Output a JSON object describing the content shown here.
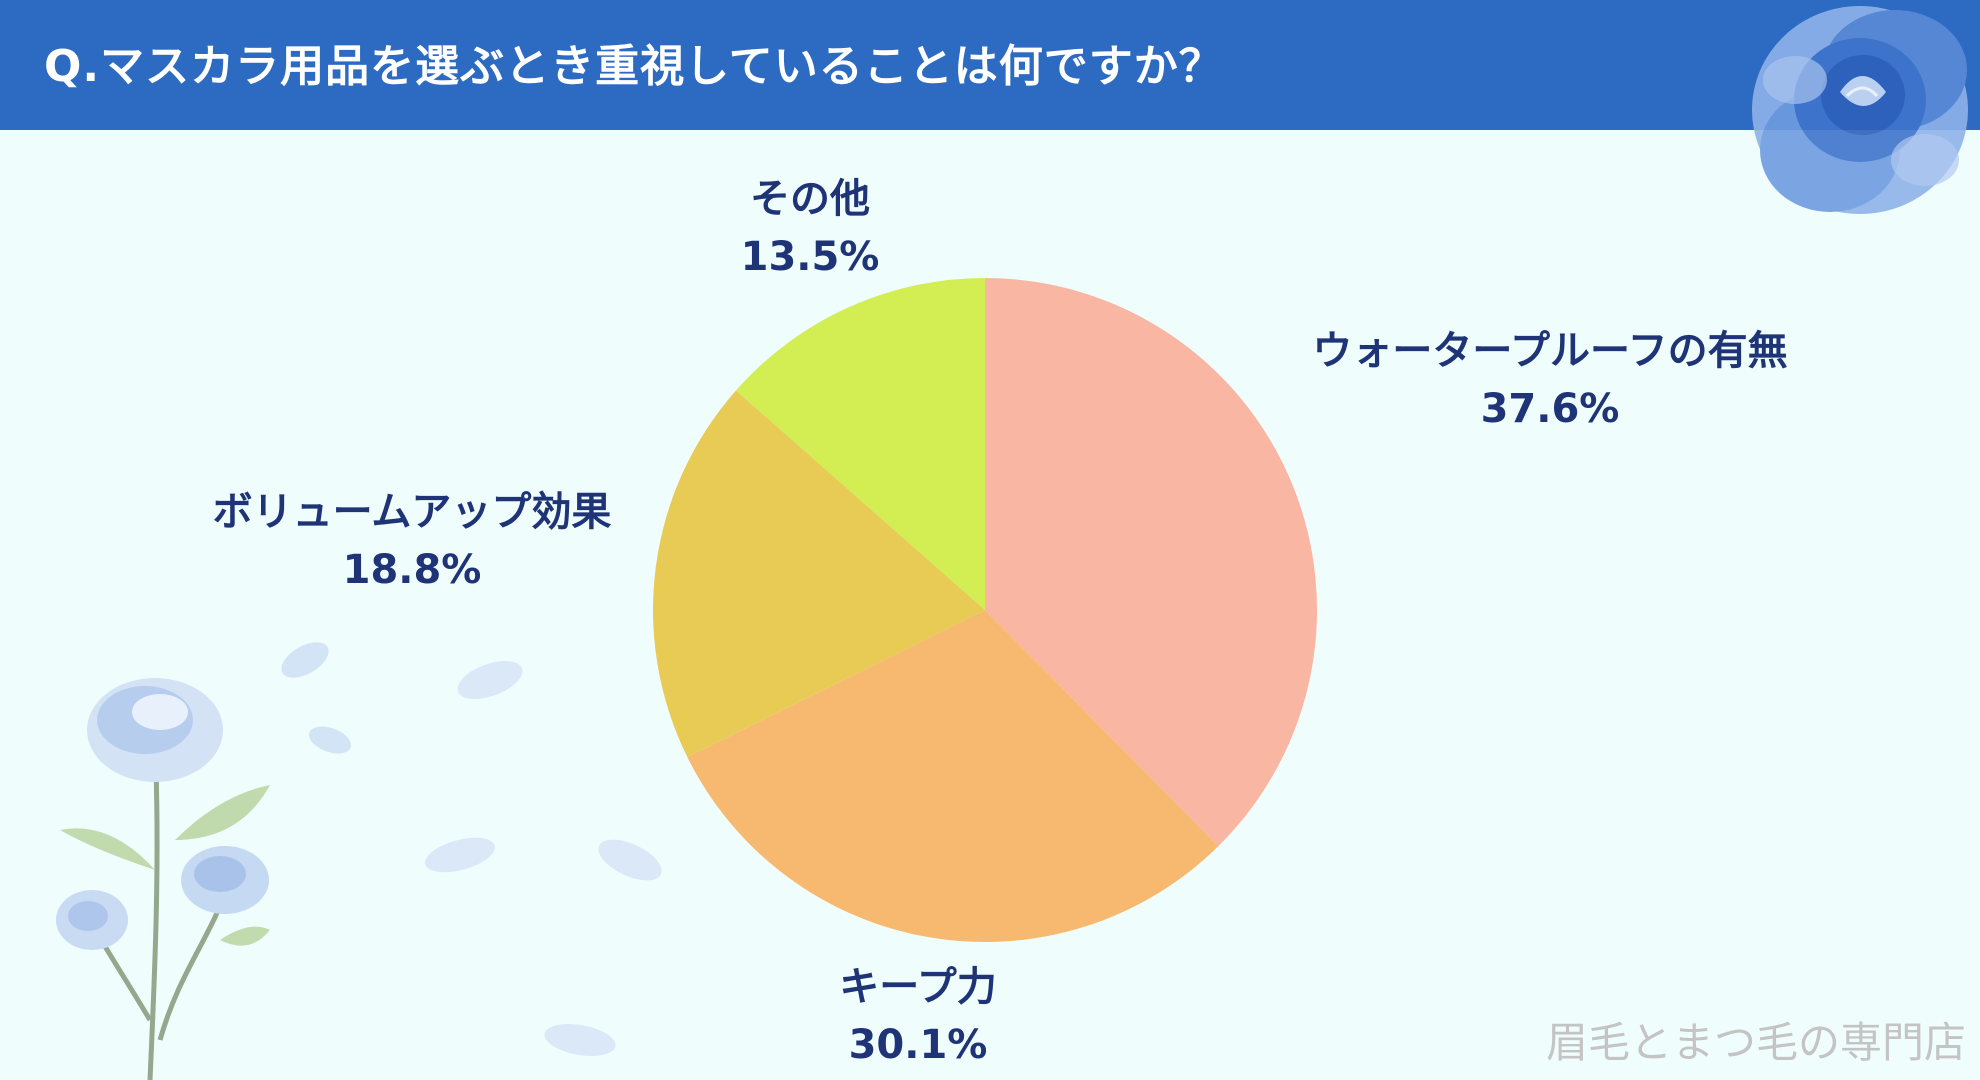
{
  "header": {
    "title": "Q.マスカラ用品を選ぶとき重視していることは何ですか？"
  },
  "brand": "眉毛とまつ毛の専門店",
  "colors": {
    "header_bg": "#2d6bc2",
    "label_text": "#1e3477",
    "background": "#f0fdfd"
  },
  "chart_data": {
    "type": "pie",
    "title": "Q.マスカラ用品を選ぶとき重視していることは何ですか？",
    "start_angle_deg": 0,
    "direction": "clockwise",
    "slices": [
      {
        "label": "ウォータープルーフの有無",
        "value": 37.6,
        "display": "37.6%",
        "color": "#f9b6a2"
      },
      {
        "label": "キープ力",
        "value": 30.1,
        "display": "30.1%",
        "color": "#f7b970"
      },
      {
        "label": "ボリュームアップ効果",
        "value": 18.8,
        "display": "18.8%",
        "color": "#e7cb54"
      },
      {
        "label": "その他",
        "value": 13.5,
        "display": "13.5%",
        "color": "#d2ee52"
      }
    ]
  }
}
